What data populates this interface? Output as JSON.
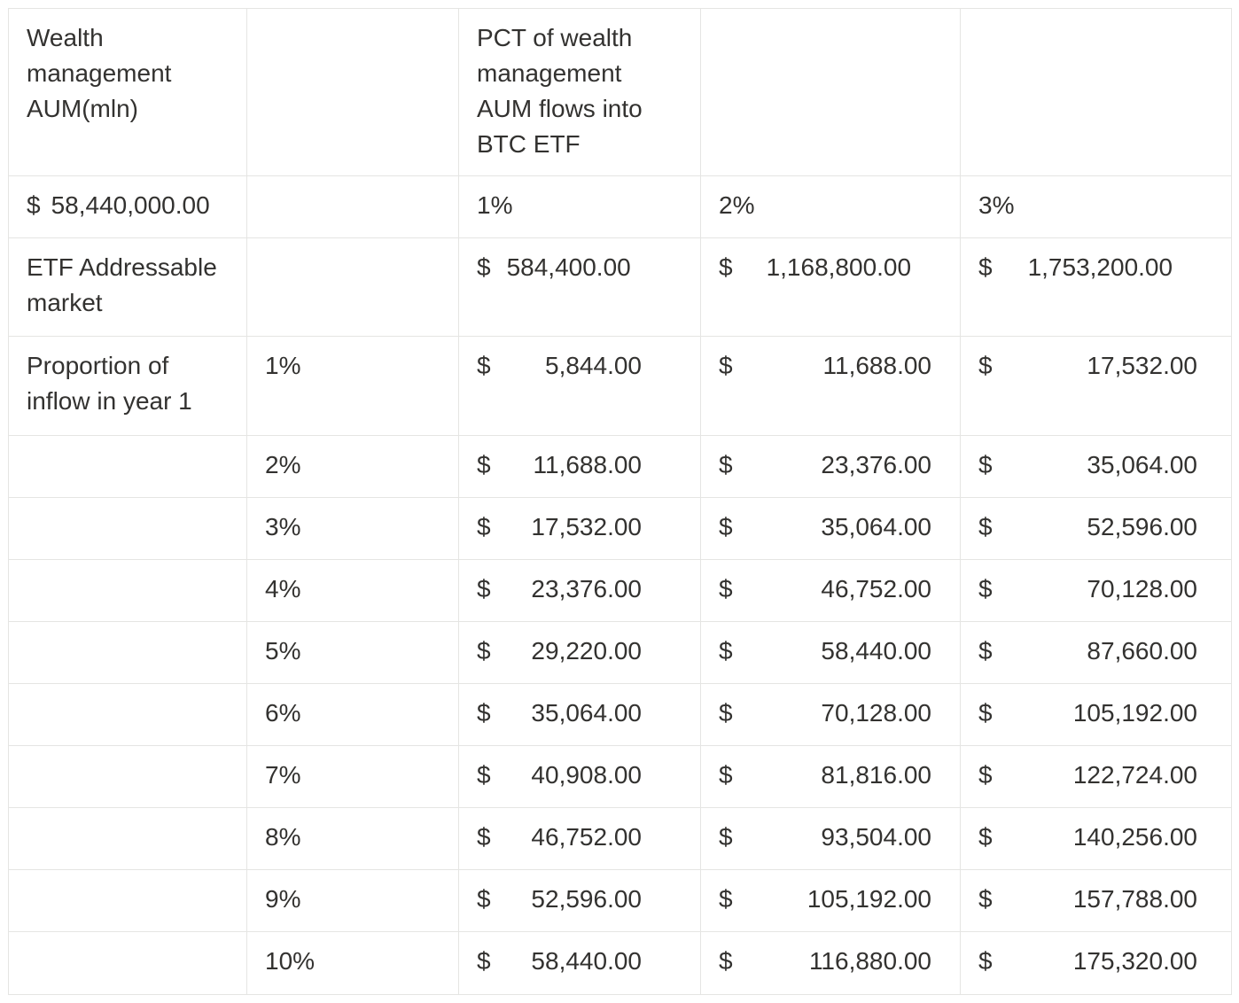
{
  "page": {
    "background": "#ffffff"
  },
  "table": {
    "border_color": "#e5e5e3",
    "text_color": "#333230",
    "currency_symbol": "$",
    "rows": [
      {
        "cells": [
          {
            "type": "text",
            "name": "wealth-aum-header",
            "text": "Wealth\nmanagement\nAUM(mln)"
          },
          {
            "type": "empty"
          },
          {
            "type": "text",
            "name": "pct-flows-header",
            "text": "PCT of wealth\nmanagement\nAUM flows into\nBTC ETF"
          },
          {
            "type": "empty"
          },
          {
            "type": "empty"
          }
        ]
      },
      {
        "cells": [
          {
            "type": "money",
            "name": "wealth-aum-value",
            "sym": "$",
            "value": "58,440,000.00",
            "layout": "inline",
            "gap": 12
          },
          {
            "type": "empty"
          },
          {
            "type": "text",
            "name": "flow-pct-col-1",
            "text": "1%"
          },
          {
            "type": "text",
            "name": "flow-pct-col-2",
            "text": "2%"
          },
          {
            "type": "text",
            "name": "flow-pct-col-3",
            "text": "3%"
          }
        ]
      },
      {
        "cells": [
          {
            "type": "text",
            "name": "etf-addressable-market-label",
            "text": "ETF Addressable\nmarket"
          },
          {
            "type": "empty"
          },
          {
            "type": "money",
            "name": "addressable-market-1pct",
            "sym": "$",
            "value": "584,400.00",
            "layout": "inline",
            "gap": 18
          },
          {
            "type": "money",
            "name": "addressable-market-2pct",
            "sym": "$",
            "value": "1,168,800.00",
            "layout": "inline",
            "gap": 38
          },
          {
            "type": "money",
            "name": "addressable-market-3pct",
            "sym": "$",
            "value": "1,753,200.00",
            "layout": "inline",
            "gap": 40
          }
        ]
      },
      {
        "cells": [
          {
            "type": "text",
            "name": "proportion-inflow-label",
            "text": "Proportion of\ninflow in year 1"
          },
          {
            "type": "text",
            "name": "inflow-pct-1",
            "text": "1%"
          },
          {
            "type": "money",
            "name": "inflow-1pct-col1",
            "sym": "$",
            "value": "5,844.00",
            "layout": "spread"
          },
          {
            "type": "money",
            "name": "inflow-1pct-col2",
            "sym": "$",
            "value": "11,688.00",
            "layout": "spread"
          },
          {
            "type": "money",
            "name": "inflow-1pct-col3",
            "sym": "$",
            "value": "17,532.00",
            "layout": "spread"
          }
        ]
      },
      {
        "cells": [
          {
            "type": "empty"
          },
          {
            "type": "text",
            "name": "inflow-pct-2",
            "text": "2%"
          },
          {
            "type": "money",
            "name": "inflow-2pct-col1",
            "sym": "$",
            "value": "11,688.00",
            "layout": "spread"
          },
          {
            "type": "money",
            "name": "inflow-2pct-col2",
            "sym": "$",
            "value": "23,376.00",
            "layout": "spread"
          },
          {
            "type": "money",
            "name": "inflow-2pct-col3",
            "sym": "$",
            "value": "35,064.00",
            "layout": "spread"
          }
        ]
      },
      {
        "cells": [
          {
            "type": "empty"
          },
          {
            "type": "text",
            "name": "inflow-pct-3",
            "text": "3%"
          },
          {
            "type": "money",
            "name": "inflow-3pct-col1",
            "sym": "$",
            "value": "17,532.00",
            "layout": "spread"
          },
          {
            "type": "money",
            "name": "inflow-3pct-col2",
            "sym": "$",
            "value": "35,064.00",
            "layout": "spread"
          },
          {
            "type": "money",
            "name": "inflow-3pct-col3",
            "sym": "$",
            "value": "52,596.00",
            "layout": "spread"
          }
        ]
      },
      {
        "cells": [
          {
            "type": "empty"
          },
          {
            "type": "text",
            "name": "inflow-pct-4",
            "text": "4%"
          },
          {
            "type": "money",
            "name": "inflow-4pct-col1",
            "sym": "$",
            "value": "23,376.00",
            "layout": "spread"
          },
          {
            "type": "money",
            "name": "inflow-4pct-col2",
            "sym": "$",
            "value": "46,752.00",
            "layout": "spread"
          },
          {
            "type": "money",
            "name": "inflow-4pct-col3",
            "sym": "$",
            "value": "70,128.00",
            "layout": "spread"
          }
        ]
      },
      {
        "cells": [
          {
            "type": "empty"
          },
          {
            "type": "text",
            "name": "inflow-pct-5",
            "text": "5%"
          },
          {
            "type": "money",
            "name": "inflow-5pct-col1",
            "sym": "$",
            "value": "29,220.00",
            "layout": "spread"
          },
          {
            "type": "money",
            "name": "inflow-5pct-col2",
            "sym": "$",
            "value": "58,440.00",
            "layout": "spread"
          },
          {
            "type": "money",
            "name": "inflow-5pct-col3",
            "sym": "$",
            "value": "87,660.00",
            "layout": "spread"
          }
        ]
      },
      {
        "cells": [
          {
            "type": "empty"
          },
          {
            "type": "text",
            "name": "inflow-pct-6",
            "text": "6%"
          },
          {
            "type": "money",
            "name": "inflow-6pct-col1",
            "sym": "$",
            "value": "35,064.00",
            "layout": "spread"
          },
          {
            "type": "money",
            "name": "inflow-6pct-col2",
            "sym": "$",
            "value": "70,128.00",
            "layout": "spread"
          },
          {
            "type": "money",
            "name": "inflow-6pct-col3",
            "sym": "$",
            "value": "105,192.00",
            "layout": "spread"
          }
        ]
      },
      {
        "cells": [
          {
            "type": "empty"
          },
          {
            "type": "text",
            "name": "inflow-pct-7",
            "text": "7%"
          },
          {
            "type": "money",
            "name": "inflow-7pct-col1",
            "sym": "$",
            "value": "40,908.00",
            "layout": "spread"
          },
          {
            "type": "money",
            "name": "inflow-7pct-col2",
            "sym": "$",
            "value": "81,816.00",
            "layout": "spread"
          },
          {
            "type": "money",
            "name": "inflow-7pct-col3",
            "sym": "$",
            "value": "122,724.00",
            "layout": "spread"
          }
        ]
      },
      {
        "cells": [
          {
            "type": "empty"
          },
          {
            "type": "text",
            "name": "inflow-pct-8",
            "text": "8%"
          },
          {
            "type": "money",
            "name": "inflow-8pct-col1",
            "sym": "$",
            "value": "46,752.00",
            "layout": "spread"
          },
          {
            "type": "money",
            "name": "inflow-8pct-col2",
            "sym": "$",
            "value": "93,504.00",
            "layout": "spread"
          },
          {
            "type": "money",
            "name": "inflow-8pct-col3",
            "sym": "$",
            "value": "140,256.00",
            "layout": "spread"
          }
        ]
      },
      {
        "cells": [
          {
            "type": "empty"
          },
          {
            "type": "text",
            "name": "inflow-pct-9",
            "text": "9%"
          },
          {
            "type": "money",
            "name": "inflow-9pct-col1",
            "sym": "$",
            "value": "52,596.00",
            "layout": "spread"
          },
          {
            "type": "money",
            "name": "inflow-9pct-col2",
            "sym": "$",
            "value": "105,192.00",
            "layout": "spread"
          },
          {
            "type": "money",
            "name": "inflow-9pct-col3",
            "sym": "$",
            "value": "157,788.00",
            "layout": "spread"
          }
        ]
      },
      {
        "cells": [
          {
            "type": "empty"
          },
          {
            "type": "text",
            "name": "inflow-pct-10",
            "text": "10%"
          },
          {
            "type": "money",
            "name": "inflow-10pct-col1",
            "sym": "$",
            "value": "58,440.00",
            "layout": "spread"
          },
          {
            "type": "money",
            "name": "inflow-10pct-col2",
            "sym": "$",
            "value": "116,880.00",
            "layout": "spread"
          },
          {
            "type": "money",
            "name": "inflow-10pct-col3",
            "sym": "$",
            "value": "175,320.00",
            "layout": "spread"
          }
        ]
      }
    ]
  }
}
